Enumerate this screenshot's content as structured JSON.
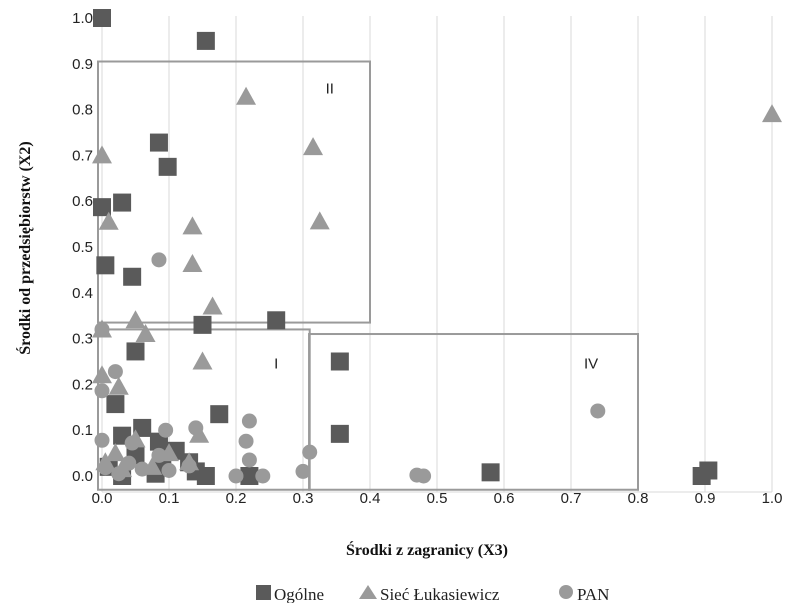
{
  "chart_data": {
    "type": "scatter",
    "xlabel": "Środki z zagranicy (X3)",
    "ylabel": "Środki od przedsiębiorstw  (X2)",
    "xlim": [
      0,
      1
    ],
    "ylim": [
      0,
      1
    ],
    "x_ticks": [
      "0.0",
      "0.1",
      "0.2",
      "0.3",
      "0.4",
      "0.5",
      "0.6",
      "0.7",
      "0.8",
      "0.9",
      "1.0"
    ],
    "y_ticks": [
      "0.0",
      "0.1",
      "0.2",
      "0.3",
      "0.4",
      "0.5",
      "0.6",
      "0.7",
      "0.8",
      "0.9",
      "1.0"
    ],
    "grid": "vertical",
    "legend_position": "bottom",
    "regions": [
      {
        "label": "II",
        "x": [
          0.0,
          0.4
        ],
        "y": [
          0.335,
          0.905
        ]
      },
      {
        "label": "I",
        "x": [
          0.0,
          0.31
        ],
        "y": [
          -0.03,
          0.32
        ]
      },
      {
        "label": "IV",
        "x": [
          0.315,
          0.8
        ],
        "y": [
          -0.03,
          0.31
        ]
      }
    ],
    "series": [
      {
        "name": "Ogólne",
        "marker": "square",
        "color": "#5a5a5a",
        "points": [
          [
            0.0,
            1.0
          ],
          [
            0.155,
            0.95
          ],
          [
            0.085,
            0.728
          ],
          [
            0.098,
            0.675
          ],
          [
            0.0,
            0.587
          ],
          [
            0.03,
            0.597
          ],
          [
            0.005,
            0.46
          ],
          [
            0.045,
            0.435
          ],
          [
            0.15,
            0.33
          ],
          [
            0.26,
            0.34
          ],
          [
            0.05,
            0.272
          ],
          [
            0.355,
            0.25
          ],
          [
            0.02,
            0.157
          ],
          [
            0.175,
            0.135
          ],
          [
            0.06,
            0.105
          ],
          [
            0.355,
            0.092
          ],
          [
            0.03,
            0.088
          ],
          [
            0.085,
            0.075
          ],
          [
            0.11,
            0.055
          ],
          [
            0.05,
            0.045
          ],
          [
            0.13,
            0.03
          ],
          [
            0.01,
            0.02
          ],
          [
            0.09,
            0.02
          ],
          [
            0.14,
            0.01
          ],
          [
            0.08,
            0.005
          ],
          [
            0.155,
            0.0
          ],
          [
            0.22,
            0.0
          ],
          [
            0.03,
            0.0
          ],
          [
            0.58,
            0.008
          ],
          [
            0.895,
            0.0
          ],
          [
            0.905,
            0.012
          ]
        ]
      },
      {
        "name": "Sieć Łukasiewicz",
        "marker": "triangle",
        "color": "#9a9a9a",
        "points": [
          [
            1.0,
            0.79
          ],
          [
            0.215,
            0.828
          ],
          [
            0.315,
            0.718
          ],
          [
            0.0,
            0.7
          ],
          [
            0.01,
            0.555
          ],
          [
            0.325,
            0.556
          ],
          [
            0.135,
            0.545
          ],
          [
            0.135,
            0.463
          ],
          [
            0.165,
            0.37
          ],
          [
            0.05,
            0.34
          ],
          [
            0.0,
            0.32
          ],
          [
            0.065,
            0.31
          ],
          [
            0.15,
            0.25
          ],
          [
            0.0,
            0.22
          ],
          [
            0.025,
            0.195
          ],
          [
            0.05,
            0.08
          ],
          [
            0.145,
            0.09
          ],
          [
            0.02,
            0.05
          ],
          [
            0.005,
            0.03
          ],
          [
            0.1,
            0.05
          ],
          [
            0.13,
            0.03
          ],
          [
            0.03,
            0.015
          ],
          [
            0.075,
            0.02
          ]
        ]
      },
      {
        "name": "PAN",
        "marker": "circle",
        "color": "#9a9a9a",
        "points": [
          [
            0.085,
            0.472
          ],
          [
            0.0,
            0.32
          ],
          [
            0.02,
            0.228
          ],
          [
            0.0,
            0.186
          ],
          [
            0.22,
            0.12
          ],
          [
            0.14,
            0.105
          ],
          [
            0.095,
            0.1
          ],
          [
            0.0,
            0.078
          ],
          [
            0.215,
            0.076
          ],
          [
            0.045,
            0.072
          ],
          [
            0.31,
            0.052
          ],
          [
            0.085,
            0.045
          ],
          [
            0.22,
            0.035
          ],
          [
            0.04,
            0.028
          ],
          [
            0.13,
            0.022
          ],
          [
            0.005,
            0.018
          ],
          [
            0.06,
            0.015
          ],
          [
            0.1,
            0.012
          ],
          [
            0.3,
            0.01
          ],
          [
            0.025,
            0.005
          ],
          [
            0.2,
            0.0
          ],
          [
            0.24,
            0.0
          ],
          [
            0.47,
            0.002
          ],
          [
            0.48,
            0.0
          ],
          [
            0.74,
            0.142
          ]
        ]
      }
    ]
  }
}
